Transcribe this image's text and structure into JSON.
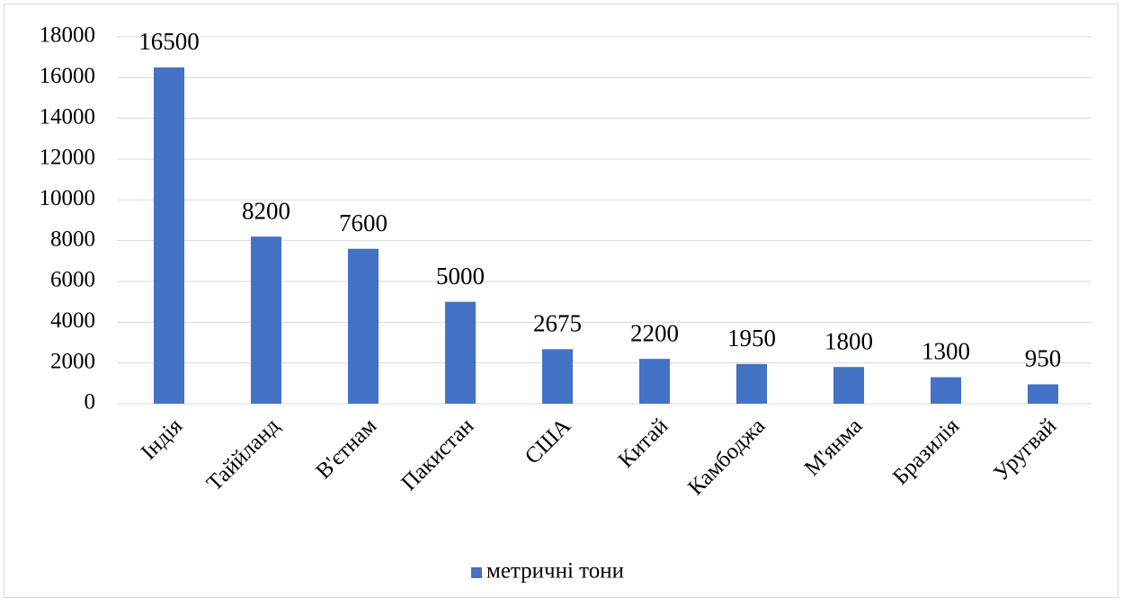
{
  "chart_data": {
    "type": "bar",
    "categories": [
      "Індія",
      "Таййланд",
      "В'єтнам",
      "Пакистан",
      "США",
      "Китай",
      "Камбоджа",
      "М'янма",
      "Бразилія",
      "Уругвай"
    ],
    "series": [
      {
        "name": "метричні тони",
        "color": "#4472c4",
        "values": [
          16500,
          8200,
          7600,
          5000,
          2675,
          2200,
          1950,
          1800,
          1300,
          950
        ]
      }
    ],
    "ylim": [
      0,
      18000
    ],
    "yticks": [
      0,
      2000,
      4000,
      6000,
      8000,
      10000,
      12000,
      14000,
      16000,
      18000
    ],
    "grid": true,
    "legend": "bottom"
  }
}
